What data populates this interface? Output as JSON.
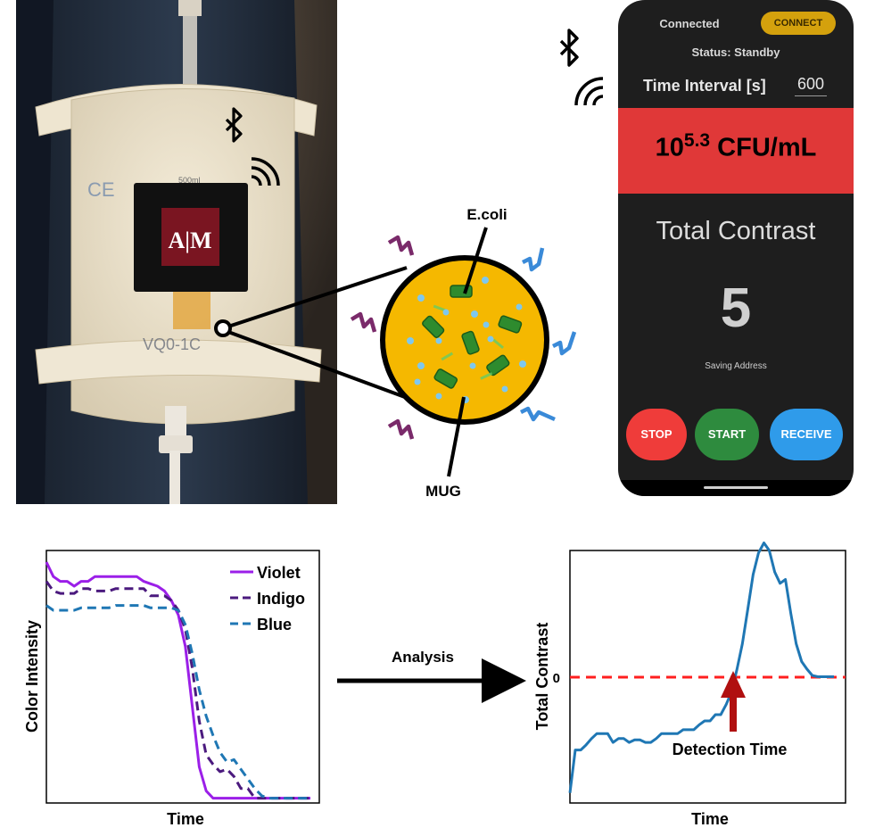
{
  "colors": {
    "violet": "#9b1fe8",
    "indigo": "#4b1a7e",
    "blue": "#1f77b4",
    "zero_line": "#ff1f1f",
    "arrow": "#b01010",
    "bacteria_fill": "#f5b800",
    "phone_bg": "#1e1e1e",
    "banner": "#e03838"
  },
  "icons": [
    "bluetooth-icon",
    "wireless-signal-icon",
    "atm-logo",
    "e-coli-bacterium",
    "fluorescence-emission-arrows"
  ],
  "photo": {
    "logo_text": "A|M",
    "bag_volume_text": "500ml"
  },
  "diagram": {
    "ecoli_label": "E.coli",
    "mug_label": "MUG"
  },
  "phone": {
    "connected": "Connected",
    "connect_button": "CONNECT",
    "status": "Status: Standby",
    "time_interval_label": "Time Interval [s]",
    "time_interval_value": "600",
    "cfu_base": "10",
    "cfu_exponent": "5.3",
    "cfu_unit": " CFU/mL",
    "contrast_label": "Total Contrast",
    "contrast_value": "5",
    "saving_address": "Saving Address",
    "buttons": {
      "stop": "STOP",
      "start": "START",
      "receive": "RECEIVE"
    }
  },
  "analysis_label": "Analysis",
  "chart_data": [
    {
      "type": "line",
      "title": "",
      "xlabel": "Time",
      "ylabel": "Color Intensity",
      "x": [
        0,
        0.5,
        1,
        1.5,
        2,
        2.5,
        3,
        3.5,
        4,
        4.5,
        5,
        5.5,
        6,
        6.5,
        7,
        7.5,
        8,
        8.5,
        9,
        9.5,
        10,
        10.5,
        11,
        11.5,
        12,
        12.5,
        13,
        13.5,
        14,
        14.5,
        15,
        15.5,
        16,
        16.5,
        17,
        17.5,
        18,
        18.5,
        19
      ],
      "ylim": [
        0,
        100
      ],
      "legend": "top-right",
      "series": [
        {
          "name": "Violet",
          "style": "solid",
          "values": [
            100,
            94,
            92,
            92,
            90,
            92,
            92,
            94,
            94,
            94,
            94,
            94,
            94,
            94,
            92,
            91,
            90,
            88,
            84,
            78,
            65,
            40,
            15,
            5,
            2,
            2,
            2,
            2,
            2,
            2,
            2,
            2,
            2,
            2,
            2,
            2,
            2,
            2,
            2
          ]
        },
        {
          "name": "Indigo",
          "style": "dashed",
          "values": [
            92,
            88,
            87,
            87,
            87,
            89,
            89,
            88,
            88,
            88,
            89,
            89,
            89,
            89,
            89,
            86,
            86,
            86,
            84,
            80,
            72,
            56,
            34,
            20,
            16,
            13,
            14,
            11,
            6,
            6,
            2,
            2,
            2,
            2,
            2,
            2,
            2,
            2,
            2
          ]
        },
        {
          "name": "Blue",
          "style": "dashed",
          "values": [
            82,
            80,
            80,
            80,
            80,
            81,
            81,
            81,
            81,
            81,
            82,
            82,
            82,
            82,
            82,
            81,
            81,
            81,
            81,
            80,
            74,
            62,
            47,
            36,
            28,
            21,
            17,
            18,
            14,
            10,
            6,
            3,
            2,
            2,
            2,
            2,
            2,
            2,
            2
          ]
        }
      ]
    },
    {
      "type": "line",
      "title": "",
      "xlabel": "Time",
      "ylabel": "Total Contrast",
      "yticks": [
        "0"
      ],
      "annotation": "Detection Time",
      "detection_x": 15.1,
      "ylim": [
        -10,
        10
      ],
      "x": [
        0,
        0.5,
        1,
        1.5,
        2,
        2.5,
        3,
        3.5,
        4,
        4.5,
        5,
        5.5,
        6,
        6.5,
        7,
        7.5,
        8,
        8.5,
        9,
        9.5,
        10,
        10.5,
        11,
        11.5,
        12,
        12.5,
        13,
        13.5,
        14,
        14.5,
        15,
        15.5,
        16,
        16.5,
        17,
        17.5,
        18,
        18.5,
        19,
        19.5,
        20,
        20.5,
        21,
        21.5,
        22,
        22.5,
        23,
        23.5,
        24,
        24.5
      ],
      "series": [
        {
          "name": "",
          "values": [
            -9.2,
            -5.8,
            -5.8,
            -5.4,
            -4.9,
            -4.5,
            -4.5,
            -4.5,
            -5.2,
            -4.9,
            -4.9,
            -5.2,
            -5.0,
            -5.0,
            -5.2,
            -5.2,
            -4.9,
            -4.5,
            -4.5,
            -4.5,
            -4.5,
            -4.2,
            -4.2,
            -4.2,
            -3.8,
            -3.5,
            -3.5,
            -3.0,
            -3.0,
            -2.2,
            -1.2,
            0.6,
            2.6,
            5.3,
            8.1,
            9.8,
            10.6,
            10.0,
            8.3,
            7.4,
            7.7,
            5.0,
            2.6,
            1.2,
            0.6,
            0.1,
            0,
            0,
            0,
            0
          ]
        }
      ]
    }
  ]
}
